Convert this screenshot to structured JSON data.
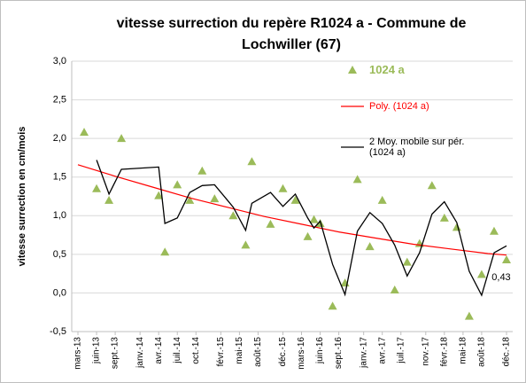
{
  "chart_data": {
    "type": "scatter",
    "title": "vitesse surrection du repère R1024 a - Commune de Lochwiller (67)",
    "y_label": "vitesse surrection en cm/mois",
    "xlim": [
      "2013-02",
      "2019-01"
    ],
    "xticks": [
      {
        "value": "2013-03",
        "label": "mars-13"
      },
      {
        "value": "2013-06",
        "label": "juin-13"
      },
      {
        "value": "2013-09",
        "label": "sept.-13"
      },
      {
        "value": "2014-01",
        "label": "janv.-14"
      },
      {
        "value": "2014-04",
        "label": "avr.-14"
      },
      {
        "value": "2014-07",
        "label": "juil.-14"
      },
      {
        "value": "2014-10",
        "label": "oct.-14"
      },
      {
        "value": "2015-02",
        "label": "févr.-15"
      },
      {
        "value": "2015-05",
        "label": "mai-15"
      },
      {
        "value": "2015-08",
        "label": "août-15"
      },
      {
        "value": "2015-12",
        "label": "déc.-15"
      },
      {
        "value": "2016-03",
        "label": "mars-16"
      },
      {
        "value": "2016-06",
        "label": "juin-16"
      },
      {
        "value": "2016-09",
        "label": "sept.-16"
      },
      {
        "value": "2017-01",
        "label": "janv.-17"
      },
      {
        "value": "2017-04",
        "label": "avr.-17"
      },
      {
        "value": "2017-07",
        "label": "juil.-17"
      },
      {
        "value": "2017-11",
        "label": "nov.-17"
      },
      {
        "value": "2018-02",
        "label": "févr.-18"
      },
      {
        "value": "2018-05",
        "label": "mai-18"
      },
      {
        "value": "2018-08",
        "label": "août-18"
      },
      {
        "value": "2018-12",
        "label": "déc.-18"
      }
    ],
    "ylim": [
      -0.5,
      3.0
    ],
    "yticks": [
      {
        "value": -0.5,
        "label": "-0,5"
      },
      {
        "value": 0,
        "label": "0,0"
      },
      {
        "value": 0.5,
        "label": "0,5"
      },
      {
        "value": 1.0,
        "label": "1,0"
      },
      {
        "value": 1.5,
        "label": "1,5"
      },
      {
        "value": 2.0,
        "label": "2,0"
      },
      {
        "value": 2.5,
        "label": "2,5"
      },
      {
        "value": 3.0,
        "label": "3,0"
      }
    ],
    "grid": true,
    "x": [
      "2013-04",
      "2013-06",
      "2013-08",
      "2013-10",
      "2014-04",
      "2014-05",
      "2014-07",
      "2014-09",
      "2014-11",
      "2015-01",
      "2015-04",
      "2015-06",
      "2015-07",
      "2015-10",
      "2015-12",
      "2016-02",
      "2016-04",
      "2016-05",
      "2016-06",
      "2016-08",
      "2016-10",
      "2016-12",
      "2017-02",
      "2017-04",
      "2017-06",
      "2017-08",
      "2017-10",
      "2017-12",
      "2018-02",
      "2018-04",
      "2018-06",
      "2018-08",
      "2018-10",
      "2018-12"
    ],
    "series": [
      {
        "name": "1024 a",
        "kind": "points",
        "color": "#9bbb59",
        "values": [
          2.08,
          1.35,
          1.2,
          2.0,
          1.26,
          0.53,
          1.4,
          1.2,
          1.58,
          1.22,
          1.0,
          0.62,
          1.7,
          0.89,
          1.35,
          1.2,
          0.73,
          0.95,
          0.9,
          -0.17,
          0.13,
          1.47,
          0.6,
          1.2,
          0.04,
          0.4,
          0.64,
          1.39,
          0.97,
          0.85,
          -0.3,
          0.24,
          0.8,
          0.43
        ],
        "value_labels": [
          null,
          null,
          null,
          null,
          null,
          null,
          null,
          null,
          null,
          null,
          null,
          null,
          null,
          null,
          null,
          null,
          null,
          null,
          null,
          null,
          null,
          null,
          null,
          null,
          null,
          null,
          null,
          null,
          null,
          null,
          null,
          null,
          null,
          "0,43"
        ]
      },
      {
        "name": "Poly. (1024 a)",
        "kind": "line",
        "color": "#ff0000",
        "x": [
          "2013-03",
          "2013-09",
          "2014-03",
          "2014-09",
          "2015-03",
          "2015-09",
          "2016-03",
          "2016-09",
          "2017-03",
          "2017-09",
          "2018-03",
          "2018-09",
          "2018-12"
        ],
        "values": [
          1.66,
          1.51,
          1.37,
          1.23,
          1.11,
          0.99,
          0.89,
          0.79,
          0.71,
          0.63,
          0.57,
          0.51,
          0.49
        ]
      },
      {
        "name": "2 Moy. mobile sur pér. (1024 a)",
        "kind": "line",
        "color": "#000000",
        "values": [
          null,
          1.72,
          1.28,
          1.6,
          1.63,
          0.9,
          0.97,
          1.3,
          1.39,
          1.4,
          1.11,
          0.81,
          1.16,
          1.3,
          1.12,
          1.28,
          0.97,
          0.84,
          0.93,
          0.37,
          -0.02,
          0.8,
          1.04,
          0.9,
          0.62,
          0.22,
          0.52,
          1.02,
          1.18,
          0.91,
          0.28,
          -0.03,
          0.52,
          0.61
        ]
      }
    ]
  }
}
